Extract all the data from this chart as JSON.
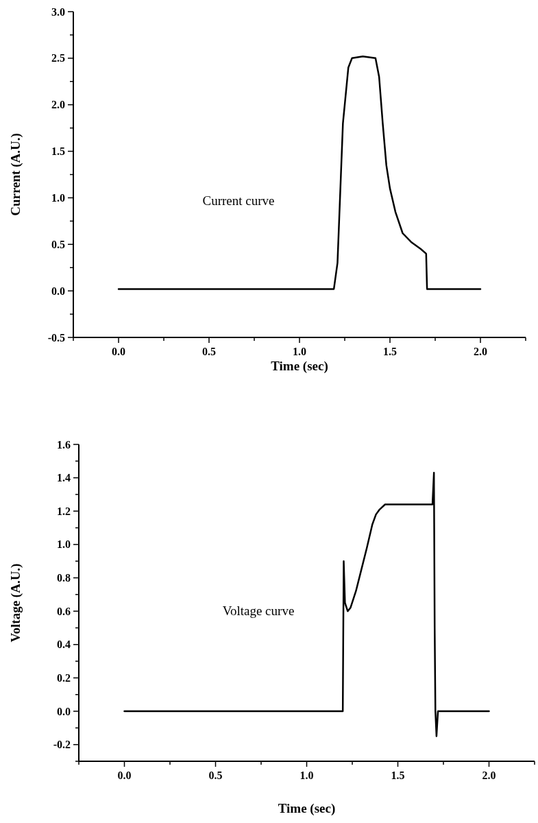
{
  "chart_data": [
    {
      "type": "line",
      "xlabel": "Time (sec)",
      "ylabel": "Current (A.U.)",
      "annotations": [
        "Current curve"
      ],
      "xlim": [
        -0.25,
        2.25
      ],
      "ylim": [
        -0.5,
        3.0
      ],
      "xticks": [
        {
          "value": -0.25,
          "label": null
        },
        {
          "value": 0,
          "label": "0.0"
        },
        {
          "value": 0.25,
          "label": null
        },
        {
          "value": 0.5,
          "label": "0.5"
        },
        {
          "value": 0.75,
          "label": null
        },
        {
          "value": 1,
          "label": "1.0"
        },
        {
          "value": 1.25,
          "label": null
        },
        {
          "value": 1.5,
          "label": "1.5"
        },
        {
          "value": 1.75,
          "label": null
        },
        {
          "value": 2,
          "label": "2.0"
        },
        {
          "value": 2.25,
          "label": null
        }
      ],
      "yticks": [
        {
          "value": -0.5,
          "label": "-0.5"
        },
        {
          "value": -0.25,
          "label": null
        },
        {
          "value": 0,
          "label": "0.0"
        },
        {
          "value": 0.25,
          "label": null
        },
        {
          "value": 0.5,
          "label": "0.5"
        },
        {
          "value": 0.75,
          "label": null
        },
        {
          "value": 1,
          "label": "1.0"
        },
        {
          "value": 1.25,
          "label": null
        },
        {
          "value": 1.5,
          "label": "1.5"
        },
        {
          "value": 1.75,
          "label": null
        },
        {
          "value": 2,
          "label": "2.0"
        },
        {
          "value": 2.25,
          "label": null
        },
        {
          "value": 2.5,
          "label": "2.5"
        },
        {
          "value": 2.75,
          "label": null
        },
        {
          "value": 3,
          "label": "3.0"
        }
      ],
      "series": [
        {
          "color": "#000000",
          "x": [
            0,
            0.3,
            0.6,
            0.9,
            1.19,
            1.21,
            1.24,
            1.27,
            1.29,
            1.35,
            1.42,
            1.44,
            1.46,
            1.48,
            1.5,
            1.53,
            1.57,
            1.62,
            1.67,
            1.7,
            1.705,
            1.8,
            2.0
          ],
          "values": [
            0.02,
            0.02,
            0.02,
            0.02,
            0.02,
            0.3,
            1.8,
            2.4,
            2.5,
            2.52,
            2.5,
            2.3,
            1.8,
            1.35,
            1.1,
            0.85,
            0.62,
            0.52,
            0.45,
            0.4,
            0.02,
            0.02,
            0.02
          ]
        }
      ]
    },
    {
      "type": "line",
      "xlabel": "Time (sec)",
      "ylabel": "Voltage (A.U.)",
      "annotations": [
        "Voltage curve"
      ],
      "xlim": [
        -0.25,
        2.25
      ],
      "ylim": [
        -0.3,
        1.6
      ],
      "xticks": [
        {
          "value": -0.25,
          "label": null
        },
        {
          "value": 0,
          "label": "0.0"
        },
        {
          "value": 0.25,
          "label": null
        },
        {
          "value": 0.5,
          "label": "0.5"
        },
        {
          "value": 0.75,
          "label": null
        },
        {
          "value": 1,
          "label": "1.0"
        },
        {
          "value": 1.25,
          "label": null
        },
        {
          "value": 1.5,
          "label": "1.5"
        },
        {
          "value": 1.75,
          "label": null
        },
        {
          "value": 2,
          "label": "2.0"
        },
        {
          "value": 2.25,
          "label": null
        }
      ],
      "yticks": [
        {
          "value": -0.3,
          "label": null
        },
        {
          "value": -0.2,
          "label": "-0.2"
        },
        {
          "value": -0.1,
          "label": null
        },
        {
          "value": 0,
          "label": "0.0"
        },
        {
          "value": 0.1,
          "label": null
        },
        {
          "value": 0.2,
          "label": "0.2"
        },
        {
          "value": 0.3,
          "label": null
        },
        {
          "value": 0.4,
          "label": "0.4"
        },
        {
          "value": 0.5,
          "label": null
        },
        {
          "value": 0.6,
          "label": "0.6"
        },
        {
          "value": 0.7,
          "label": null
        },
        {
          "value": 0.8,
          "label": "0.8"
        },
        {
          "value": 0.9,
          "label": null
        },
        {
          "value": 1,
          "label": "1.0"
        },
        {
          "value": 1.1,
          "label": null
        },
        {
          "value": 1.2,
          "label": "1.2"
        },
        {
          "value": 1.3,
          "label": null
        },
        {
          "value": 1.4,
          "label": "1.4"
        },
        {
          "value": 1.5,
          "label": null
        },
        {
          "value": 1.6,
          "label": "1.6"
        }
      ],
      "series": [
        {
          "color": "#000000",
          "x": [
            0,
            0.3,
            0.6,
            0.9,
            1.198,
            1.203,
            1.21,
            1.225,
            1.24,
            1.27,
            1.3,
            1.33,
            1.36,
            1.38,
            1.4,
            1.43,
            1.5,
            1.6,
            1.69,
            1.698,
            1.702,
            1.706,
            1.712,
            1.72,
            1.85,
            2.0
          ],
          "values": [
            0.0,
            0.0,
            0.0,
            0.0,
            0.0,
            0.9,
            0.65,
            0.6,
            0.62,
            0.72,
            0.85,
            0.98,
            1.12,
            1.18,
            1.21,
            1.24,
            1.24,
            1.24,
            1.24,
            1.43,
            0.5,
            0.0,
            -0.15,
            0.0,
            0.0,
            0.0
          ]
        }
      ]
    }
  ]
}
